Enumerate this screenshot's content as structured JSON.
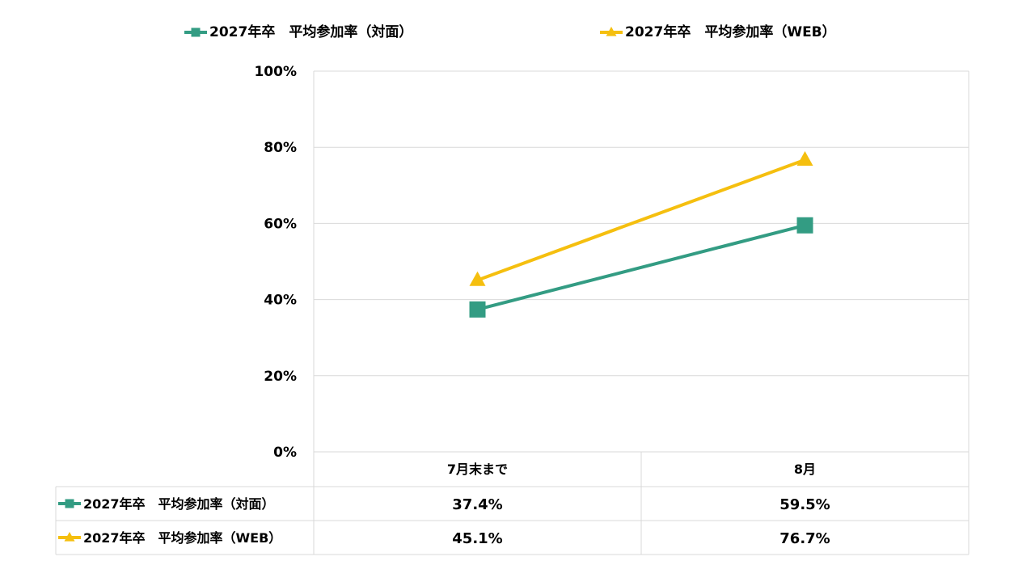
{
  "chart_data": {
    "type": "line",
    "categories": [
      "7月末まで",
      "8月"
    ],
    "series": [
      {
        "name": "2027年卒　平均参加率（対面）",
        "values": [
          37.4,
          59.5
        ],
        "labels": [
          "37.4%",
          "59.5%"
        ],
        "color": "#339c83",
        "marker": "square"
      },
      {
        "name": "2027年卒　平均参加率（WEB）",
        "values": [
          45.1,
          76.7
        ],
        "labels": [
          "45.1%",
          "76.7%"
        ],
        "color": "#f5bf0f",
        "marker": "triangle"
      }
    ],
    "yticks": [
      "0%",
      "20%",
      "40%",
      "60%",
      "80%",
      "100%"
    ],
    "ylim": [
      0,
      100
    ],
    "grid": true,
    "legend_position": "top",
    "data_table": true
  }
}
